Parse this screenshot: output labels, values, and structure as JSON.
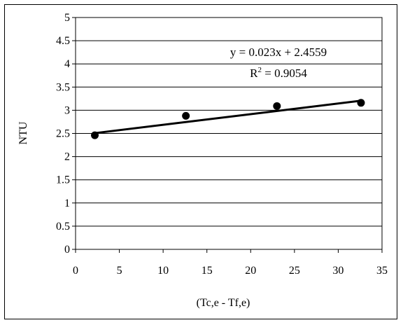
{
  "chart_data": {
    "type": "scatter",
    "xlabel": "(Tc,e - Tf,e)",
    "ylabel": "NTU",
    "xlim": [
      0,
      35
    ],
    "ylim": [
      0,
      5
    ],
    "x_ticks": [
      "0",
      "5",
      "10",
      "15",
      "20",
      "25",
      "30",
      "35"
    ],
    "y_ticks": [
      "0",
      "0.5",
      "1",
      "1.5",
      "2",
      "2.5",
      "3",
      "3.5",
      "4",
      "4.5",
      "5"
    ],
    "grid": "horizontal",
    "series": [
      {
        "points": [
          {
            "x": 2.2,
            "y": 2.46
          },
          {
            "x": 12.6,
            "y": 2.88
          },
          {
            "x": 23.0,
            "y": 3.09
          },
          {
            "x": 32.6,
            "y": 3.16
          }
        ]
      }
    ],
    "trendline": {
      "slope": 0.023,
      "intercept": 2.4559,
      "x_range": [
        2.2,
        32.6
      ],
      "equation": "y = 0.023x + 2.4559",
      "r2_label": "R",
      "r2_exponent": "2",
      "r2_value": " = 0.9054"
    },
    "colors": {
      "marker": "#000000",
      "line": "#000000",
      "grid": "#000000"
    }
  }
}
